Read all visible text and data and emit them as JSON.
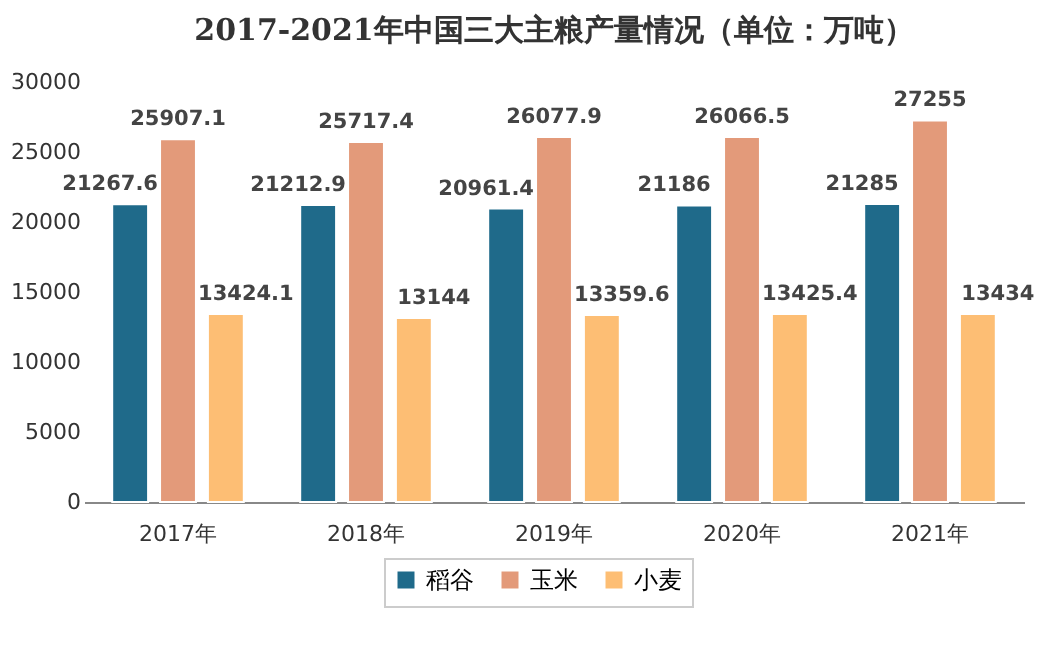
{
  "chart_data": {
    "type": "bar",
    "title": "2017-2021年中国三大主粮产量情况（单位：万吨）",
    "categories": [
      "2017年",
      "2018年",
      "2019年",
      "2020年",
      "2021年"
    ],
    "series": [
      {
        "name": "稻谷",
        "color": "#1f6a8a",
        "values": [
          21267.6,
          21212.9,
          20961.4,
          21186,
          21285
        ]
      },
      {
        "name": "玉米",
        "color": "#e39a7a",
        "values": [
          25907.1,
          25717.4,
          26077.9,
          26066.5,
          27255
        ]
      },
      {
        "name": "小麦",
        "color": "#fdbe74",
        "values": [
          13424.1,
          13144,
          13359.6,
          13425.4,
          13434
        ]
      }
    ],
    "ylim": [
      0,
      30000
    ],
    "yticks": [
      0,
      5000,
      10000,
      15000,
      20000,
      25000,
      30000
    ],
    "data_labels": true,
    "legend": "bottom"
  }
}
